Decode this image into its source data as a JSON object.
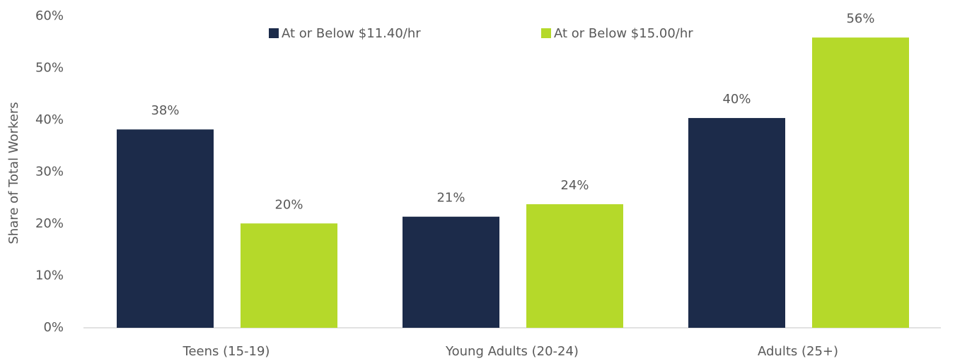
{
  "chart_data": {
    "type": "bar",
    "ylabel": "Share of Total Workers",
    "categories": [
      "Teens (15-19)",
      "Young Adults (20-24)",
      "Adults (25+)"
    ],
    "series": [
      {
        "name": "At or Below $11.40/hr",
        "color": "#1c2b4a",
        "values": [
          38.2,
          21.4,
          40.4
        ],
        "value_labels": [
          "38%",
          "21%",
          "40%"
        ]
      },
      {
        "name": "At or Below $15.00/hr",
        "color": "#b5d92a",
        "values": [
          20.1,
          23.8,
          55.9
        ],
        "value_labels": [
          "20%",
          "24%",
          "56%"
        ]
      }
    ],
    "ylim": [
      0,
      60
    ],
    "yticks": [
      {
        "value": 0,
        "label": "0%"
      },
      {
        "value": 10,
        "label": "10%"
      },
      {
        "value": 20,
        "label": "20%"
      },
      {
        "value": 30,
        "label": "30%"
      },
      {
        "value": 40,
        "label": "40%"
      },
      {
        "value": 50,
        "label": "50%"
      },
      {
        "value": 60,
        "label": "60%"
      }
    ],
    "grid": false,
    "legend": "top"
  }
}
